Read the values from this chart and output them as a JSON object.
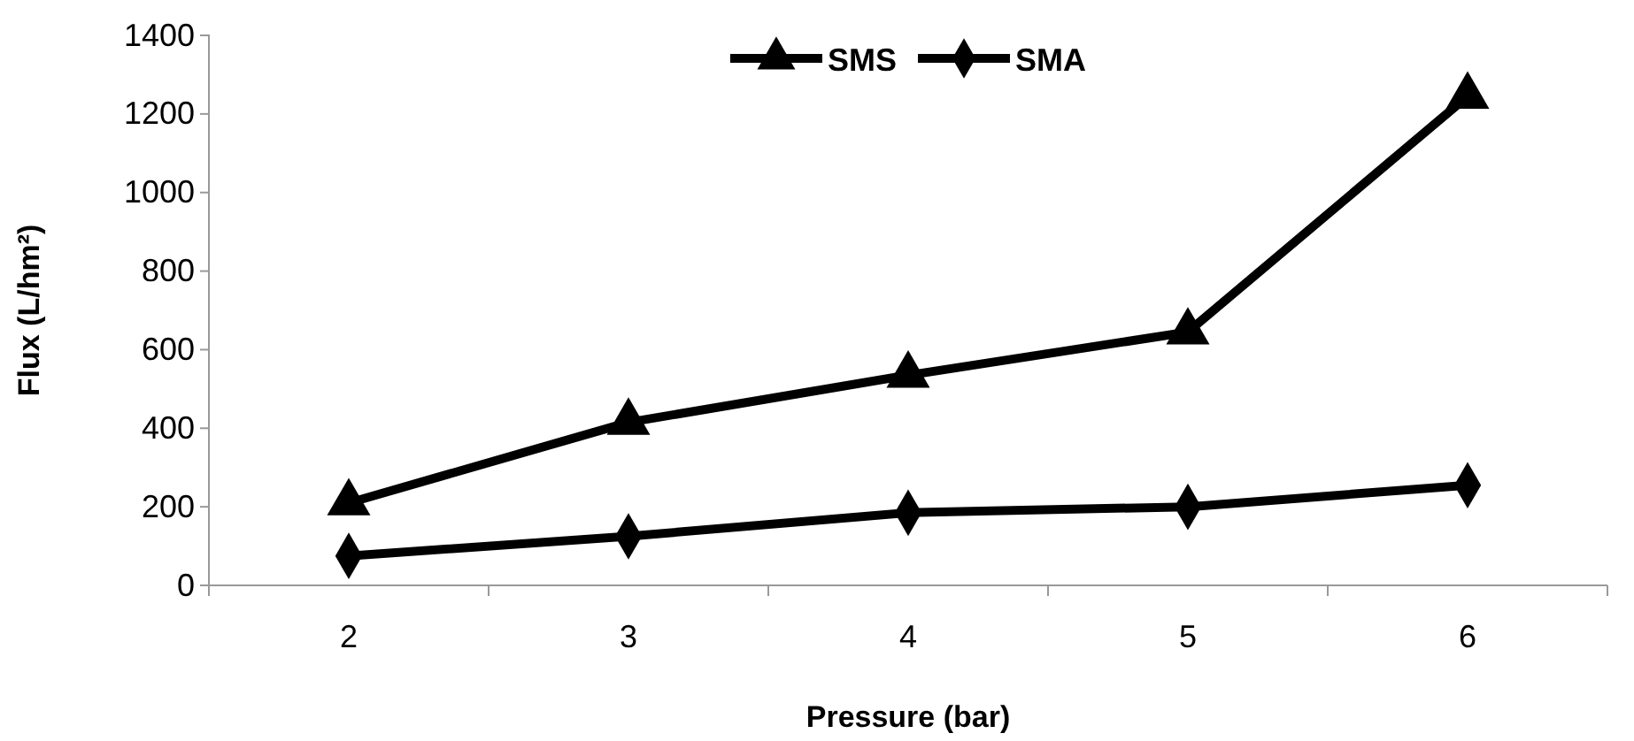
{
  "chart_data": {
    "type": "line",
    "xlabel": "Pressure (bar)",
    "ylabel": "Flux (L/hm²)",
    "categories": [
      "2",
      "3",
      "4",
      "5",
      "6"
    ],
    "series": [
      {
        "name": "SMS",
        "color": "#000000",
        "marker": "triangle",
        "values": [
          210,
          415,
          535,
          645,
          1245
        ]
      },
      {
        "name": "SMA",
        "color": "#000000",
        "marker": "diamond",
        "values": [
          75,
          125,
          185,
          200,
          255
        ]
      }
    ],
    "ylim": [
      0,
      1400
    ],
    "yticks": [
      0,
      200,
      400,
      600,
      800,
      1000,
      1200,
      1400
    ],
    "grid": false,
    "legend": "top",
    "line_style": "solid"
  }
}
